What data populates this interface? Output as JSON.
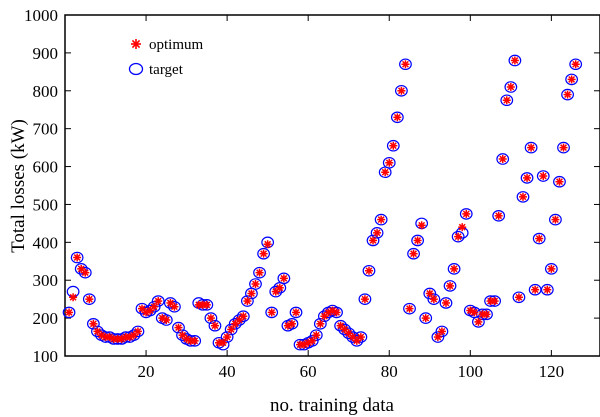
{
  "chart_data": {
    "type": "scatter",
    "xlabel": "no. training data",
    "ylabel": "Total losses (kW)",
    "xlim": [
      0,
      132
    ],
    "ylim": [
      100,
      1000
    ],
    "xticks": [
      20,
      40,
      60,
      80,
      100,
      120
    ],
    "yticks": [
      100,
      200,
      300,
      400,
      500,
      600,
      700,
      800,
      900,
      1000
    ],
    "grid": false,
    "legend_position": "top-left",
    "colors": {
      "optimum": "#ff0000",
      "target": "#0000ff"
    },
    "series": [
      {
        "name": "optimum",
        "marker": "asterisk",
        "values": [
          215,
          255,
          360,
          330,
          320,
          250,
          185,
          165,
          155,
          150,
          150,
          145,
          145,
          145,
          150,
          150,
          155,
          165,
          225,
          215,
          220,
          230,
          245,
          200,
          195,
          240,
          230,
          175,
          155,
          145,
          140,
          140,
          235,
          235,
          235,
          200,
          180,
          135,
          135,
          150,
          170,
          185,
          195,
          205,
          245,
          265,
          290,
          320,
          370,
          395,
          215,
          270,
          280,
          305,
          180,
          185,
          215,
          130,
          130,
          135,
          140,
          155,
          185,
          205,
          215,
          220,
          215,
          180,
          170,
          160,
          150,
          140,
          150,
          250,
          325,
          405,
          425,
          460,
          585,
          610,
          655,
          730,
          800,
          870,
          225,
          370,
          405,
          445,
          200,
          265,
          250,
          150,
          165,
          240,
          285,
          330,
          415,
          440,
          475,
          220,
          215,
          190,
          210,
          210,
          245,
          245,
          470,
          620,
          775,
          810,
          880,
          255,
          520,
          570,
          650,
          275,
          410,
          575,
          275,
          330,
          460,
          560,
          650,
          790,
          830,
          870
        ]
      },
      {
        "name": "target",
        "marker": "circle",
        "values": [
          215,
          270,
          360,
          330,
          320,
          250,
          185,
          165,
          155,
          150,
          150,
          145,
          145,
          145,
          150,
          150,
          155,
          165,
          225,
          215,
          220,
          230,
          245,
          200,
          195,
          240,
          230,
          175,
          155,
          145,
          140,
          140,
          240,
          235,
          235,
          200,
          180,
          135,
          130,
          150,
          170,
          185,
          195,
          205,
          245,
          265,
          290,
          320,
          370,
          400,
          215,
          270,
          280,
          305,
          180,
          185,
          215,
          130,
          130,
          135,
          140,
          155,
          185,
          205,
          215,
          220,
          215,
          180,
          170,
          160,
          150,
          140,
          150,
          250,
          325,
          405,
          425,
          460,
          585,
          610,
          655,
          730,
          800,
          870,
          225,
          370,
          405,
          450,
          200,
          265,
          250,
          150,
          165,
          240,
          285,
          330,
          415,
          425,
          475,
          220,
          215,
          190,
          210,
          210,
          245,
          245,
          470,
          620,
          775,
          810,
          880,
          255,
          520,
          570,
          650,
          275,
          410,
          575,
          275,
          330,
          460,
          560,
          650,
          790,
          830,
          870
        ]
      }
    ]
  }
}
